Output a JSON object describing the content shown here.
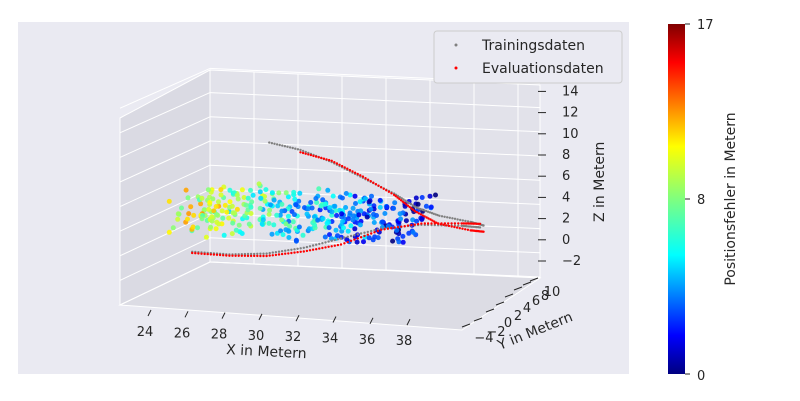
{
  "chart_data": {
    "type": "scatter",
    "projection": "3d",
    "title": "",
    "xlabel": "X in Metern",
    "ylabel": "Y in Metern",
    "zlabel": "Z in Metern",
    "x_ticks": [
      "24",
      "26",
      "28",
      "30",
      "32",
      "34",
      "36",
      "38"
    ],
    "y_ticks": [
      "−4",
      "−2",
      "0",
      "2",
      "4",
      "6",
      "8",
      "10"
    ],
    "z_ticks": [
      "−2",
      "0",
      "2",
      "4",
      "6",
      "8",
      "10",
      "12",
      "14"
    ],
    "grid": true,
    "legend": {
      "placement": "top-right",
      "entries": [
        {
          "label": "Trainingsdaten",
          "color": "#808080"
        },
        {
          "label": "Evaluationsdaten",
          "color": "#ff0000"
        }
      ]
    },
    "colorbar": {
      "label": "Positionsfehler in Metern",
      "ticks": [
        "0",
        "8",
        "17"
      ],
      "min": 0,
      "max": 17,
      "colormap": "jet"
    },
    "series": [
      {
        "name": "Trainingsdaten",
        "color": "#808080",
        "points": [
          [
            27,
            7,
            8.5
          ],
          [
            29,
            6.5,
            8.2
          ],
          [
            31,
            6,
            7.5
          ],
          [
            33,
            5.5,
            6.5
          ],
          [
            35,
            5,
            5.5
          ],
          [
            36.5,
            4.5,
            4.6
          ],
          [
            38,
            4,
            4.2
          ],
          [
            40,
            3.5,
            4
          ],
          [
            41,
            3,
            3.9
          ],
          [
            26,
            -3,
            2.2
          ],
          [
            28,
            -2.5,
            2.0
          ],
          [
            30,
            -2,
            2.1
          ],
          [
            32,
            -1.5,
            2.6
          ],
          [
            34,
            -1,
            3.4
          ],
          [
            36,
            0,
            4.1
          ],
          [
            38,
            1,
            4.3
          ],
          [
            40,
            2,
            4.1
          ],
          [
            41,
            2.5,
            3.9
          ]
        ]
      },
      {
        "name": "Evaluationsdaten",
        "color": "#ff0000",
        "points": [
          [
            29,
            6.5,
            8.0
          ],
          [
            31,
            6,
            7.6
          ],
          [
            33,
            5.5,
            6.6
          ],
          [
            35,
            5,
            5.4
          ],
          [
            36.5,
            4.2,
            4.4
          ],
          [
            38,
            3.8,
            3.6
          ],
          [
            40,
            3.5,
            3.3
          ],
          [
            41,
            3,
            3.4
          ],
          [
            26,
            -3,
            2.1
          ],
          [
            28,
            -2.5,
            1.9
          ],
          [
            30,
            -2,
            1.9
          ],
          [
            32,
            -1.5,
            2.3
          ],
          [
            34,
            -1,
            2.9
          ],
          [
            36,
            0,
            4.0
          ],
          [
            38,
            1,
            4.4
          ],
          [
            40,
            2,
            4.3
          ],
          [
            41,
            2.5,
            4.2
          ]
        ]
      }
    ]
  }
}
